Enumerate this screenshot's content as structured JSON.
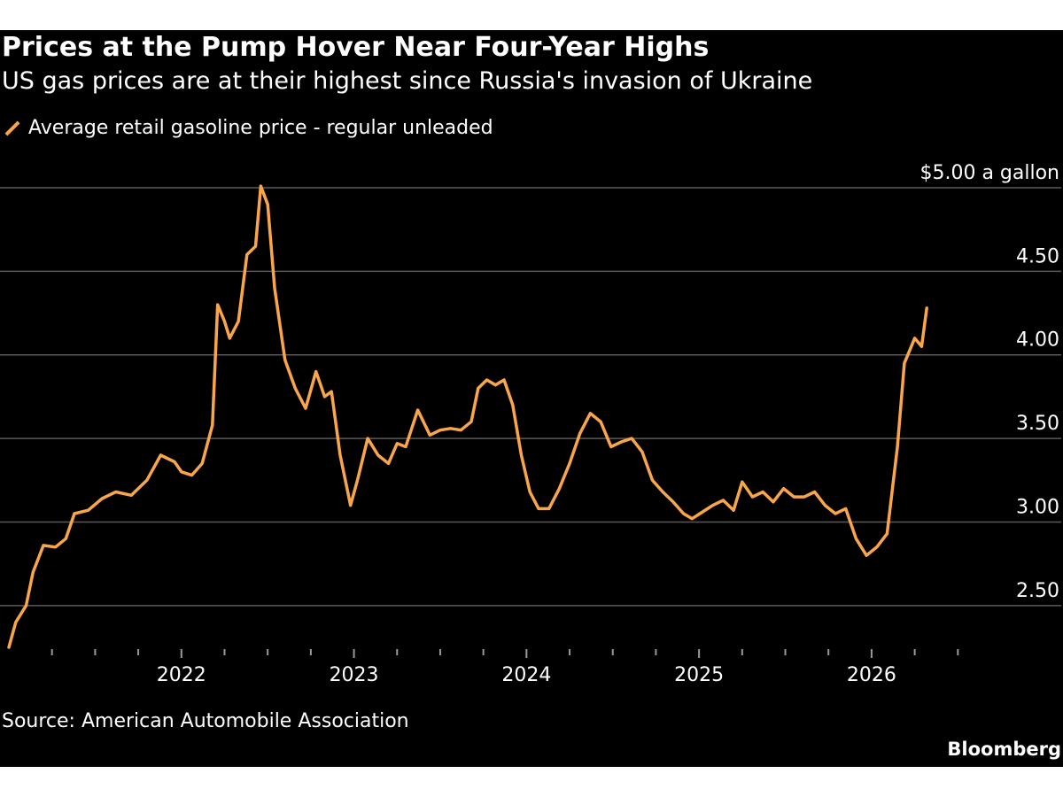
{
  "header": {
    "title": "Prices at the Pump Hover Near Four-Year Highs",
    "subtitle": "US gas prices are at their highest since Russia's invasion of Ukraine"
  },
  "footer": {
    "source": "Source: American Automobile Association",
    "brand": "Bloomberg"
  },
  "colors": {
    "background": "#000000",
    "line": "#f9a64a",
    "grid": "#5a5a5a",
    "text": "#ffffff"
  },
  "chart_data": {
    "type": "line",
    "title": "Prices at the Pump Hover Near Four-Year Highs",
    "subtitle": "US gas prices are at their highest since Russia's invasion of Ukraine",
    "xlabel": "",
    "ylabel": "$ a gallon",
    "ylim": [
      2.25,
      5.0
    ],
    "xlim": [
      2021.0,
      2026.75
    ],
    "grid": true,
    "legend_position": "top-left",
    "y_ticks": [
      {
        "value": 5.0,
        "label": "$5.00 a gallon"
      },
      {
        "value": 4.5,
        "label": "4.50"
      },
      {
        "value": 4.0,
        "label": "4.00"
      },
      {
        "value": 3.5,
        "label": "3.50"
      },
      {
        "value": 3.0,
        "label": "3.00"
      },
      {
        "value": 2.5,
        "label": "2.50"
      }
    ],
    "x_ticks": [
      {
        "value": 2022,
        "label": "2022"
      },
      {
        "value": 2023,
        "label": "2023"
      },
      {
        "value": 2024,
        "label": "2024"
      },
      {
        "value": 2025,
        "label": "2025"
      },
      {
        "value": 2026,
        "label": "2026"
      }
    ],
    "series": [
      {
        "name": "Average retail gasoline price - regular unleaded",
        "points": [
          [
            2021.0,
            2.25
          ],
          [
            2021.04,
            2.4
          ],
          [
            2021.1,
            2.5
          ],
          [
            2021.14,
            2.7
          ],
          [
            2021.2,
            2.86
          ],
          [
            2021.27,
            2.85
          ],
          [
            2021.33,
            2.9
          ],
          [
            2021.38,
            3.05
          ],
          [
            2021.46,
            3.07
          ],
          [
            2021.54,
            3.14
          ],
          [
            2021.62,
            3.18
          ],
          [
            2021.71,
            3.16
          ],
          [
            2021.8,
            3.25
          ],
          [
            2021.88,
            3.4
          ],
          [
            2021.96,
            3.36
          ],
          [
            2022.0,
            3.3
          ],
          [
            2022.06,
            3.28
          ],
          [
            2022.12,
            3.35
          ],
          [
            2022.18,
            3.58
          ],
          [
            2022.21,
            4.3
          ],
          [
            2022.25,
            4.2
          ],
          [
            2022.28,
            4.1
          ],
          [
            2022.33,
            4.2
          ],
          [
            2022.38,
            4.6
          ],
          [
            2022.43,
            4.65
          ],
          [
            2022.46,
            5.01
          ],
          [
            2022.5,
            4.9
          ],
          [
            2022.54,
            4.4
          ],
          [
            2022.6,
            3.97
          ],
          [
            2022.66,
            3.8
          ],
          [
            2022.72,
            3.68
          ],
          [
            2022.78,
            3.9
          ],
          [
            2022.83,
            3.75
          ],
          [
            2022.87,
            3.78
          ],
          [
            2022.92,
            3.4
          ],
          [
            2022.98,
            3.1
          ],
          [
            2023.02,
            3.25
          ],
          [
            2023.08,
            3.5
          ],
          [
            2023.14,
            3.4
          ],
          [
            2023.2,
            3.35
          ],
          [
            2023.25,
            3.47
          ],
          [
            2023.3,
            3.45
          ],
          [
            2023.37,
            3.67
          ],
          [
            2023.44,
            3.52
          ],
          [
            2023.5,
            3.55
          ],
          [
            2023.56,
            3.56
          ],
          [
            2023.62,
            3.55
          ],
          [
            2023.68,
            3.6
          ],
          [
            2023.72,
            3.8
          ],
          [
            2023.77,
            3.85
          ],
          [
            2023.82,
            3.82
          ],
          [
            2023.87,
            3.85
          ],
          [
            2023.92,
            3.7
          ],
          [
            2023.97,
            3.4
          ],
          [
            2024.02,
            3.18
          ],
          [
            2024.07,
            3.08
          ],
          [
            2024.13,
            3.08
          ],
          [
            2024.19,
            3.2
          ],
          [
            2024.25,
            3.35
          ],
          [
            2024.31,
            3.53
          ],
          [
            2024.37,
            3.65
          ],
          [
            2024.43,
            3.6
          ],
          [
            2024.49,
            3.45
          ],
          [
            2024.55,
            3.48
          ],
          [
            2024.61,
            3.5
          ],
          [
            2024.67,
            3.42
          ],
          [
            2024.73,
            3.25
          ],
          [
            2024.79,
            3.18
          ],
          [
            2024.85,
            3.12
          ],
          [
            2024.91,
            3.05
          ],
          [
            2024.96,
            3.02
          ],
          [
            2025.02,
            3.06
          ],
          [
            2025.08,
            3.1
          ],
          [
            2025.14,
            3.13
          ],
          [
            2025.2,
            3.07
          ],
          [
            2025.25,
            3.24
          ],
          [
            2025.31,
            3.15
          ],
          [
            2025.37,
            3.18
          ],
          [
            2025.43,
            3.12
          ],
          [
            2025.49,
            3.2
          ],
          [
            2025.55,
            3.15
          ],
          [
            2025.61,
            3.15
          ],
          [
            2025.67,
            3.18
          ],
          [
            2025.73,
            3.1
          ],
          [
            2025.79,
            3.05
          ],
          [
            2025.85,
            3.08
          ],
          [
            2025.91,
            2.9
          ],
          [
            2025.97,
            2.8
          ],
          [
            2026.03,
            2.85
          ],
          [
            2026.09,
            2.93
          ],
          [
            2026.15,
            3.45
          ],
          [
            2026.19,
            3.95
          ],
          [
            2026.25,
            4.1
          ],
          [
            2026.29,
            4.05
          ],
          [
            2026.32,
            4.28
          ]
        ]
      }
    ]
  }
}
